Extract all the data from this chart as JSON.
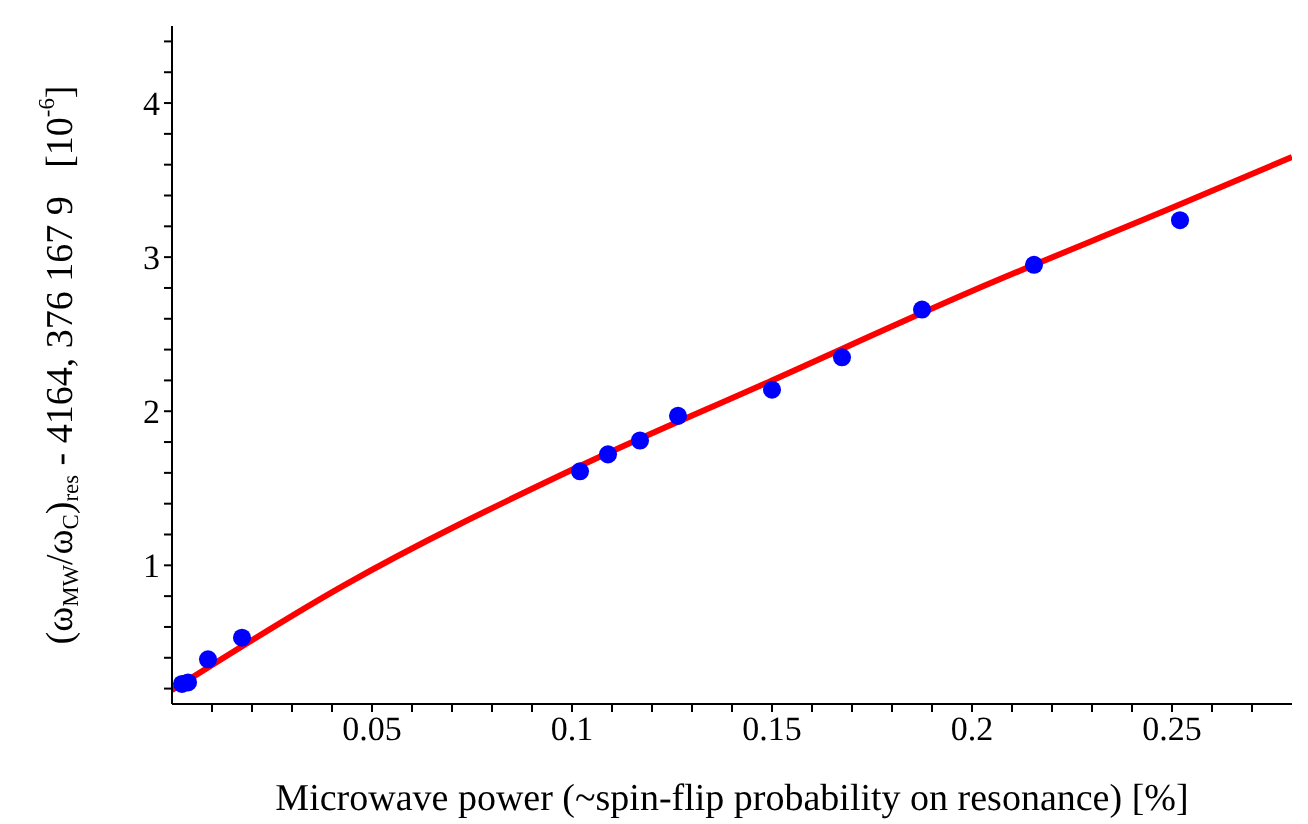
{
  "chart_data": {
    "type": "scatter",
    "xlabel": "Microwave power (~spin-flip probability on resonance) [%]",
    "ylabel": "(ω$_{MW}$/ω$_{C}$)$_{res}$ - 4164, 376 167 9   [10$^{-6}$]",
    "series": [
      {
        "color": "#0000ff",
        "marker": "circle",
        "x": [
          0.0025,
          0.004,
          0.009,
          0.0175,
          0.102,
          0.109,
          0.117,
          0.1265,
          0.15,
          0.1675,
          0.1875,
          0.2155,
          0.252
        ],
        "values": [
          0.23,
          0.24,
          0.39,
          0.53,
          1.61,
          1.72,
          1.81,
          1.97,
          2.14,
          2.35,
          2.66,
          2.95,
          3.24
        ]
      },
      {
        "type": "line",
        "color": "#ff0000",
        "marker": "none",
        "line_style": "solid",
        "x": [
          0,
          0.043,
          0.1,
          0.15,
          0.2,
          0.25,
          0.28
        ],
        "values": [
          0.19,
          0.87,
          1.62,
          2.2,
          2.78,
          3.32,
          3.65
        ]
      }
    ],
    "xlim": [
      0,
      0.28
    ],
    "xticks": [
      {
        "value": 0.01,
        "label": null
      },
      {
        "value": 0.02,
        "label": null
      },
      {
        "value": 0.03,
        "label": null
      },
      {
        "value": 0.04,
        "label": null
      },
      {
        "value": 0.05,
        "label": "0.05"
      },
      {
        "value": 0.06,
        "label": null
      },
      {
        "value": 0.07,
        "label": null
      },
      {
        "value": 0.08,
        "label": null
      },
      {
        "value": 0.09,
        "label": null
      },
      {
        "value": 0.1,
        "label": "0.1"
      },
      {
        "value": 0.11,
        "label": null
      },
      {
        "value": 0.12,
        "label": null
      },
      {
        "value": 0.13,
        "label": null
      },
      {
        "value": 0.14,
        "label": null
      },
      {
        "value": 0.15,
        "label": "0.15"
      },
      {
        "value": 0.16,
        "label": null
      },
      {
        "value": 0.17,
        "label": null
      },
      {
        "value": 0.18,
        "label": null
      },
      {
        "value": 0.19,
        "label": null
      },
      {
        "value": 0.2,
        "label": "0.2"
      },
      {
        "value": 0.21,
        "label": null
      },
      {
        "value": 0.22,
        "label": null
      },
      {
        "value": 0.23,
        "label": null
      },
      {
        "value": 0.24,
        "label": null
      },
      {
        "value": 0.25,
        "label": "0.25"
      },
      {
        "value": 0.26,
        "label": null
      },
      {
        "value": 0.27,
        "label": null
      }
    ],
    "ylim": [
      0.1,
      4.5
    ],
    "yticks": [
      {
        "value": 0.2,
        "label": null
      },
      {
        "value": 0.4,
        "label": null
      },
      {
        "value": 0.6,
        "label": null
      },
      {
        "value": 0.8,
        "label": null
      },
      1,
      {
        "value": 1.2,
        "label": null
      },
      {
        "value": 1.4,
        "label": null
      },
      {
        "value": 1.6,
        "label": null
      },
      {
        "value": 1.8,
        "label": null
      },
      2,
      {
        "value": 2.2,
        "label": null
      },
      {
        "value": 2.4,
        "label": null
      },
      {
        "value": 2.6,
        "label": null
      },
      {
        "value": 2.8,
        "label": null
      },
      3,
      {
        "value": 3.2,
        "label": null
      },
      {
        "value": 3.4,
        "label": null
      },
      {
        "value": 3.6,
        "label": null
      },
      {
        "value": 3.8,
        "label": null
      },
      4,
      {
        "value": 4.2,
        "label": null
      },
      {
        "value": 4.4,
        "label": null
      }
    ],
    "grid": false,
    "legend": false
  }
}
